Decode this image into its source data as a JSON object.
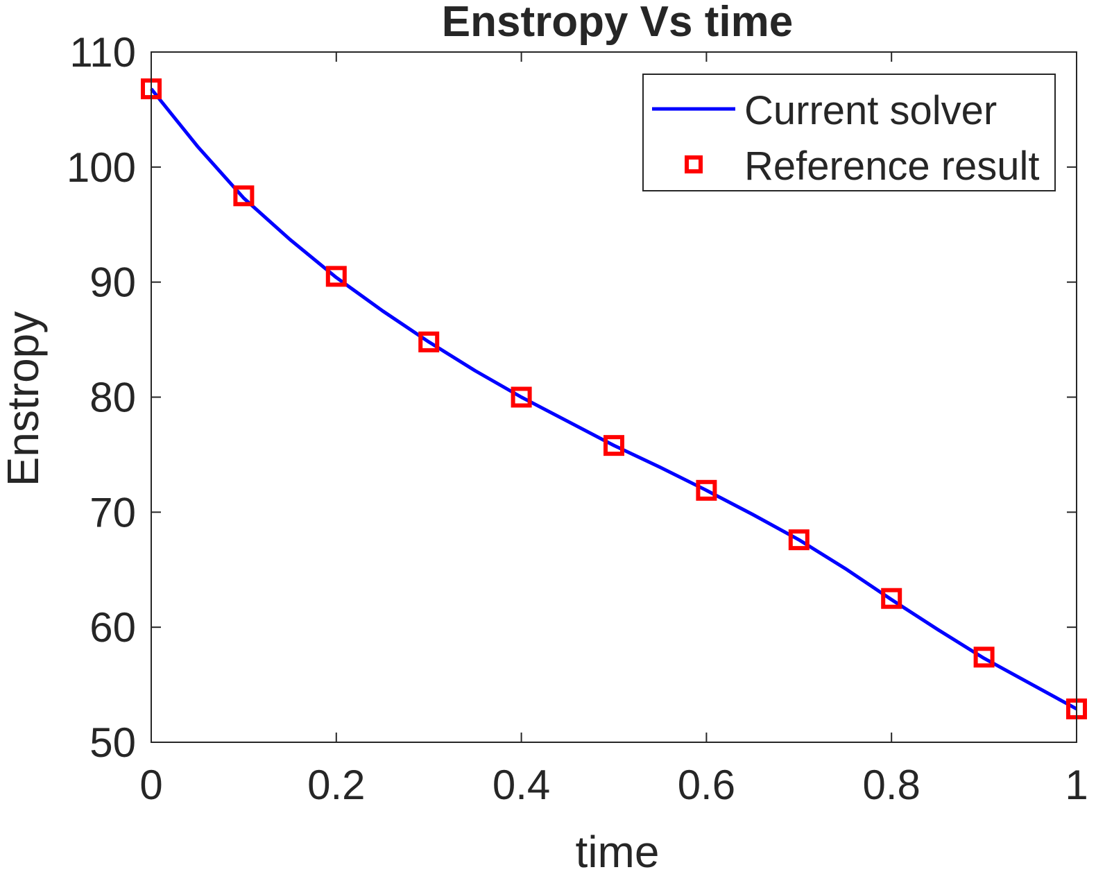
{
  "chart_data": {
    "type": "line",
    "title": "Enstropy Vs time",
    "xlabel": "time",
    "ylabel": "Enstropy",
    "xlim": [
      0,
      1
    ],
    "ylim": [
      50,
      110
    ],
    "xticks": [
      0,
      0.2,
      0.4,
      0.6,
      0.8,
      1
    ],
    "xtick_labels": [
      "0",
      "0.2",
      "0.4",
      "0.6",
      "0.8",
      "1"
    ],
    "yticks": [
      50,
      60,
      70,
      80,
      90,
      100,
      110
    ],
    "ytick_labels": [
      "50",
      "60",
      "70",
      "80",
      "90",
      "100",
      "110"
    ],
    "grid": false,
    "box": true,
    "legend_position": "top-right",
    "series": [
      {
        "name": "Current solver",
        "style": "line",
        "color": "#0000ff",
        "x": [
          0,
          0.05,
          0.1,
          0.15,
          0.2,
          0.25,
          0.3,
          0.35,
          0.4,
          0.45,
          0.5,
          0.55,
          0.6,
          0.65,
          0.7,
          0.75,
          0.8,
          0.85,
          0.9,
          0.95,
          1.0
        ],
        "y": [
          106.8,
          101.8,
          97.3,
          93.7,
          90.4,
          87.5,
          84.8,
          82.3,
          80.0,
          77.9,
          75.8,
          73.9,
          71.9,
          69.8,
          67.6,
          65.1,
          62.4,
          59.8,
          57.3,
          55.1,
          52.9
        ]
      },
      {
        "name": "Reference result",
        "style": "marker-square",
        "color": "#ff0000",
        "x": [
          0,
          0.1,
          0.2,
          0.3,
          0.4,
          0.5,
          0.6,
          0.7,
          0.8,
          0.9,
          1.0
        ],
        "y": [
          106.8,
          97.5,
          90.5,
          84.8,
          80.0,
          75.8,
          71.9,
          67.6,
          62.5,
          57.4,
          52.9
        ]
      }
    ]
  }
}
